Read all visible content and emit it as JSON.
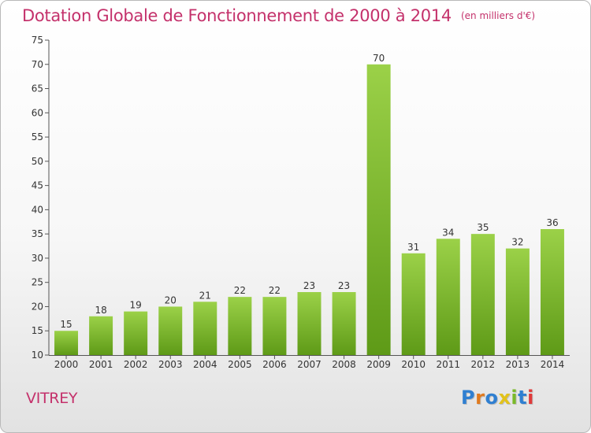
{
  "header": {
    "title": "Dotation Globale de Fonctionnement de 2000 à 2014",
    "unit_note": "(en milliers d'€)"
  },
  "footer": {
    "commune": "VITREY",
    "brand": "Proxiti"
  },
  "colors": {
    "title": "#c4316b",
    "bar_top": "#9bd148",
    "bar_bottom": "#5e9a17",
    "axis": "#555555"
  },
  "chart_data": {
    "type": "bar",
    "categories": [
      "2000",
      "2001",
      "2002",
      "2003",
      "2004",
      "2005",
      "2006",
      "2007",
      "2008",
      "2009",
      "2010",
      "2011",
      "2012",
      "2013",
      "2014"
    ],
    "values": [
      15,
      18,
      19,
      20,
      21,
      22,
      22,
      23,
      23,
      70,
      31,
      34,
      35,
      32,
      36
    ],
    "title": "Dotation Globale de Fonctionnement de 2000 à 2014",
    "subtitle": "(en milliers d'€)",
    "ylim": [
      10,
      75
    ],
    "yticks": [
      10,
      15,
      20,
      25,
      30,
      35,
      40,
      45,
      50,
      55,
      60,
      65,
      70,
      75
    ],
    "grid": false,
    "legend": "none",
    "data_labels": true
  }
}
